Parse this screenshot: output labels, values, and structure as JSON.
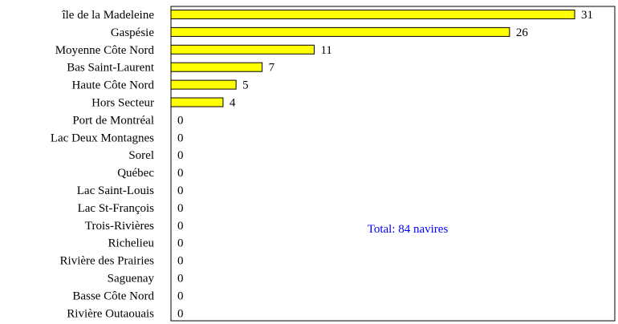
{
  "chart_data": {
    "type": "bar",
    "orientation": "horizontal",
    "categories": [
      "île de la Madeleine",
      "Gaspésie",
      "Moyenne Côte Nord",
      "Bas Saint-Laurent",
      "Haute Côte Nord",
      "Hors Secteur",
      "Port de Montréal",
      "Lac Deux Montagnes",
      "Sorel",
      "Québec",
      "Lac Saint-Louis",
      "Lac St-François",
      "Trois-Rivières",
      "Richelieu",
      "Rivière des Prairies",
      "Saguenay",
      "Basse Côte Nord",
      "Rivière Outaouais"
    ],
    "values": [
      31,
      26,
      11,
      7,
      5,
      4,
      0,
      0,
      0,
      0,
      0,
      0,
      0,
      0,
      0,
      0,
      0,
      0
    ],
    "xlim": [
      0,
      31
    ],
    "grid": false,
    "legend": "none",
    "annotation": "Total: 84 navires",
    "colors": {
      "bar": "#ffff00",
      "bar_stroke": "#000000",
      "annotation": "#0000ff",
      "axis": "#000000"
    }
  }
}
